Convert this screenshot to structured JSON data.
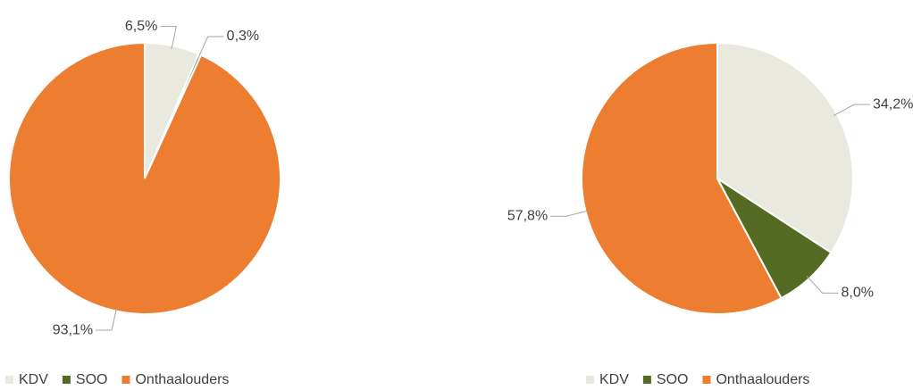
{
  "chart_data": [
    {
      "type": "pie",
      "categories": [
        "KDV",
        "SOO",
        "Onthaalouders"
      ],
      "values": [
        6.5,
        0.3,
        93.1
      ],
      "value_labels": [
        "6,5%",
        "0,3%",
        "93,1%"
      ],
      "colors": [
        "#e9e9df",
        "#556b24",
        "#ed7d31"
      ],
      "legend": "bottom"
    },
    {
      "type": "pie",
      "categories": [
        "KDV",
        "SOO",
        "Onthaalouders"
      ],
      "values": [
        34.2,
        8.0,
        57.8
      ],
      "value_labels": [
        "34,2%",
        "8,0%",
        "57,8%"
      ],
      "colors": [
        "#e9e9df",
        "#556b24",
        "#ed7d31"
      ],
      "legend": "bottom"
    }
  ]
}
